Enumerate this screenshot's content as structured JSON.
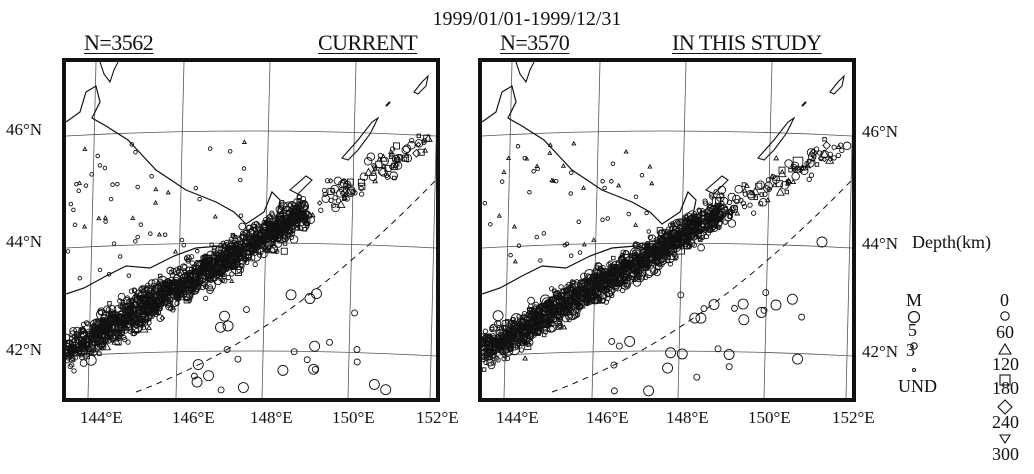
{
  "title": "1999/01/01-1999/12/31",
  "panels": [
    {
      "count": "N=3562",
      "label": "CURRENT"
    },
    {
      "count": "N=3570",
      "label": "IN THIS STUDY"
    }
  ],
  "lat_labels": [
    "46°N",
    "44°N",
    "42°N"
  ],
  "lon_labels": [
    "144°E",
    "146°E",
    "148°E",
    "150°E",
    "152°E"
  ],
  "legend": {
    "magnitude_title": "M",
    "magnitudes": [
      "5",
      "3",
      "UND"
    ],
    "depth_title": "Depth(km)",
    "depths": [
      "0",
      "60",
      "120",
      "180",
      "240",
      "300"
    ]
  },
  "colors": {
    "ink": "#111111",
    "land": "#ffffff",
    "grid": "#555555"
  }
}
